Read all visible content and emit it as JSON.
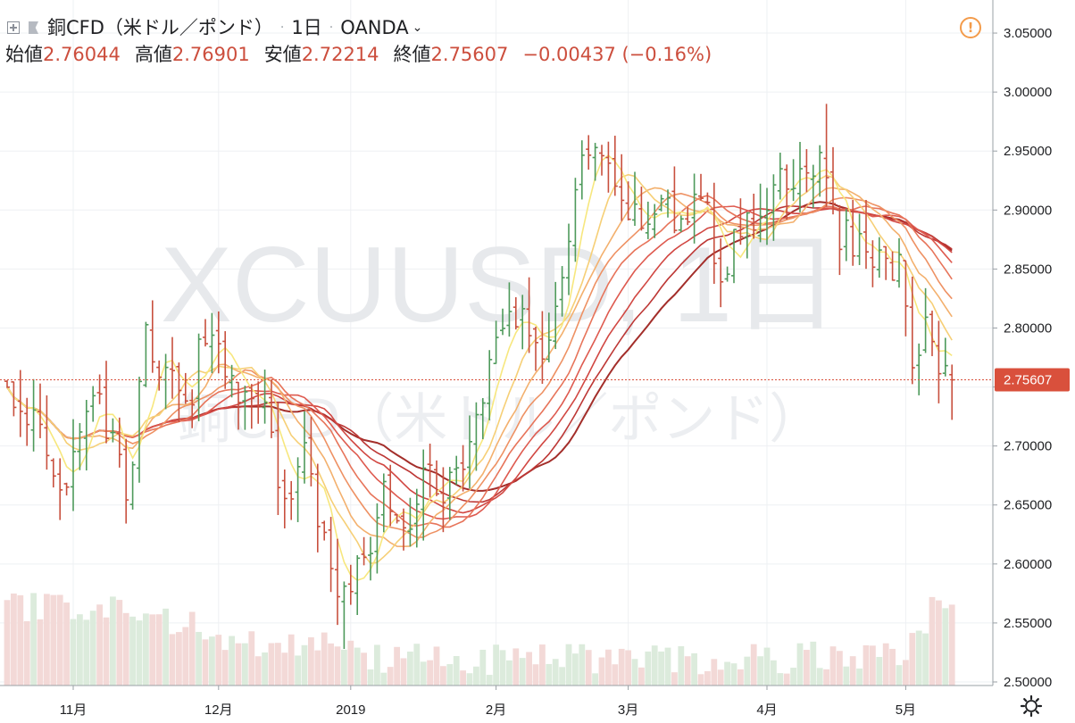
{
  "header": {
    "symbol": "銅CFD（米ドル／ポンド）",
    "interval": "1日",
    "exchange": "OANDA",
    "ohlc": {
      "open_label": "始値",
      "open": "2.76044",
      "high_label": "高値",
      "high": "2.76901",
      "low_label": "安値",
      "low": "2.72214",
      "close_label": "終値",
      "close": "2.75607",
      "change": "−0.00437 (−0.16%)"
    }
  },
  "watermark": {
    "ticker": "XCUUSD, 1日",
    "name": "銅CFD（米ドル／ポンド）"
  },
  "price_tag": {
    "value": "2.75607",
    "color": "#d9503c"
  },
  "colors": {
    "up": "#4e9a5b",
    "down": "#c8503e",
    "vol_up": "#dcebdc",
    "vol_down": "#f3d9d7",
    "grid": "#eef0f3",
    "axis_text": "#202124",
    "ribbon": [
      "#f7e77e",
      "#f6cf76",
      "#f3b06d",
      "#ee9163",
      "#e7745a",
      "#de5a4f",
      "#d14742",
      "#bd3735",
      "#a32e2a"
    ]
  },
  "chart_data": {
    "type": "candlestick",
    "title": "銅CFD（米ドル／ポンド）· 1日 · OANDA",
    "y_axis": {
      "range": [
        2.5,
        3.075
      ],
      "ticks": [
        "3.05000",
        "3.00000",
        "2.95000",
        "2.90000",
        "2.85000",
        "2.80000",
        "2.75000",
        "2.70000",
        "2.65000",
        "2.60000",
        "2.55000",
        "2.50000"
      ]
    },
    "x_axis": {
      "labels": [
        {
          "label": "11月",
          "index": 10
        },
        {
          "label": "12月",
          "index": 32
        },
        {
          "label": "2019",
          "index": 52
        },
        {
          "label": "2月",
          "index": 74
        },
        {
          "label": "3月",
          "index": 94
        },
        {
          "label": "4月",
          "index": 115
        },
        {
          "label": "5月",
          "index": 136
        }
      ]
    },
    "last_close": 2.75607,
    "ohlc_anchors": [
      [
        0,
        2.745
      ],
      [
        4,
        2.72
      ],
      [
        8,
        2.65
      ],
      [
        10,
        2.71
      ],
      [
        13,
        2.74
      ],
      [
        16,
        2.7
      ],
      [
        18,
        2.66
      ],
      [
        21,
        2.79
      ],
      [
        24,
        2.76
      ],
      [
        27,
        2.73
      ],
      [
        30,
        2.8
      ],
      [
        33,
        2.77
      ],
      [
        36,
        2.74
      ],
      [
        39,
        2.75
      ],
      [
        42,
        2.65
      ],
      [
        45,
        2.7
      ],
      [
        48,
        2.62
      ],
      [
        51,
        2.57
      ],
      [
        54,
        2.6
      ],
      [
        57,
        2.66
      ],
      [
        60,
        2.62
      ],
      [
        63,
        2.68
      ],
      [
        66,
        2.66
      ],
      [
        69,
        2.69
      ],
      [
        72,
        2.75
      ],
      [
        75,
        2.8
      ],
      [
        78,
        2.82
      ],
      [
        81,
        2.76
      ],
      [
        84,
        2.85
      ],
      [
        87,
        2.94
      ],
      [
        90,
        2.94
      ],
      [
        93,
        2.9
      ],
      [
        96,
        2.89
      ],
      [
        99,
        2.91
      ],
      [
        102,
        2.88
      ],
      [
        105,
        2.92
      ],
      [
        108,
        2.85
      ],
      [
        111,
        2.88
      ],
      [
        114,
        2.9
      ],
      [
        117,
        2.92
      ],
      [
        120,
        2.93
      ],
      [
        123,
        2.94
      ],
      [
        126,
        2.88
      ],
      [
        129,
        2.87
      ],
      [
        132,
        2.86
      ],
      [
        135,
        2.85
      ],
      [
        137,
        2.77
      ],
      [
        139,
        2.8
      ],
      [
        141,
        2.77
      ],
      [
        143,
        2.756
      ]
    ],
    "extremes": [
      {
        "index": 51,
        "low": 2.528
      },
      {
        "index": 124,
        "high": 2.99
      },
      {
        "index": 143,
        "high": 2.76901,
        "low": 2.72214
      }
    ],
    "bar_count": 144,
    "moving_average_ribbon": {
      "count": 9,
      "shortest_period": 5,
      "period_step": 4
    },
    "volume": {
      "scale": [
        0,
        1
      ],
      "profile": "high Oct–Nov, low Dec–Apr, rising in May"
    }
  }
}
